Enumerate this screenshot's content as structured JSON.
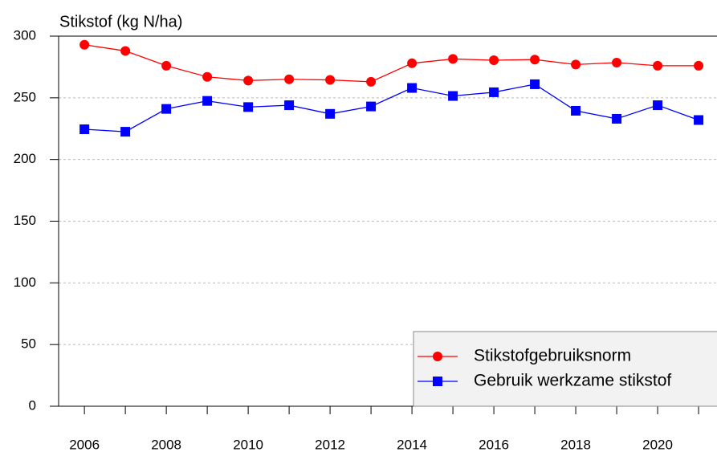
{
  "chart_data": {
    "type": "line",
    "ylabel": "Stikstof (kg N/ha)",
    "x": [
      2006,
      2007,
      2008,
      2009,
      2010,
      2011,
      2012,
      2013,
      2014,
      2015,
      2016,
      2017,
      2018,
      2019,
      2020,
      2021
    ],
    "series": [
      {
        "name": "Stikstofgebruiksnorm",
        "color": "#ff0000",
        "marker": "circle",
        "values": [
          293,
          288,
          276,
          267,
          264,
          265,
          264.5,
          263,
          278,
          281.5,
          280.5,
          281,
          277,
          278.5,
          276,
          276
        ]
      },
      {
        "name": "Gebruik werkzame stikstof",
        "color": "#0000ff",
        "marker": "square",
        "values": [
          224.5,
          222.5,
          241,
          247.5,
          242.5,
          244,
          237,
          243,
          258,
          251.5,
          254.5,
          261,
          239.5,
          233,
          244,
          232
        ]
      }
    ],
    "xlim": [
      2005.37,
      2021.45
    ],
    "xticks": [
      2006,
      2008,
      2010,
      2012,
      2014,
      2016,
      2018,
      2020
    ],
    "xminorticks": [
      2007,
      2009,
      2011,
      2013,
      2015,
      2017,
      2019,
      2021
    ],
    "ylim": [
      0,
      300
    ],
    "yticks": [
      0,
      50,
      100,
      150,
      200,
      250,
      300
    ],
    "grid": true,
    "legend": "lower right"
  }
}
